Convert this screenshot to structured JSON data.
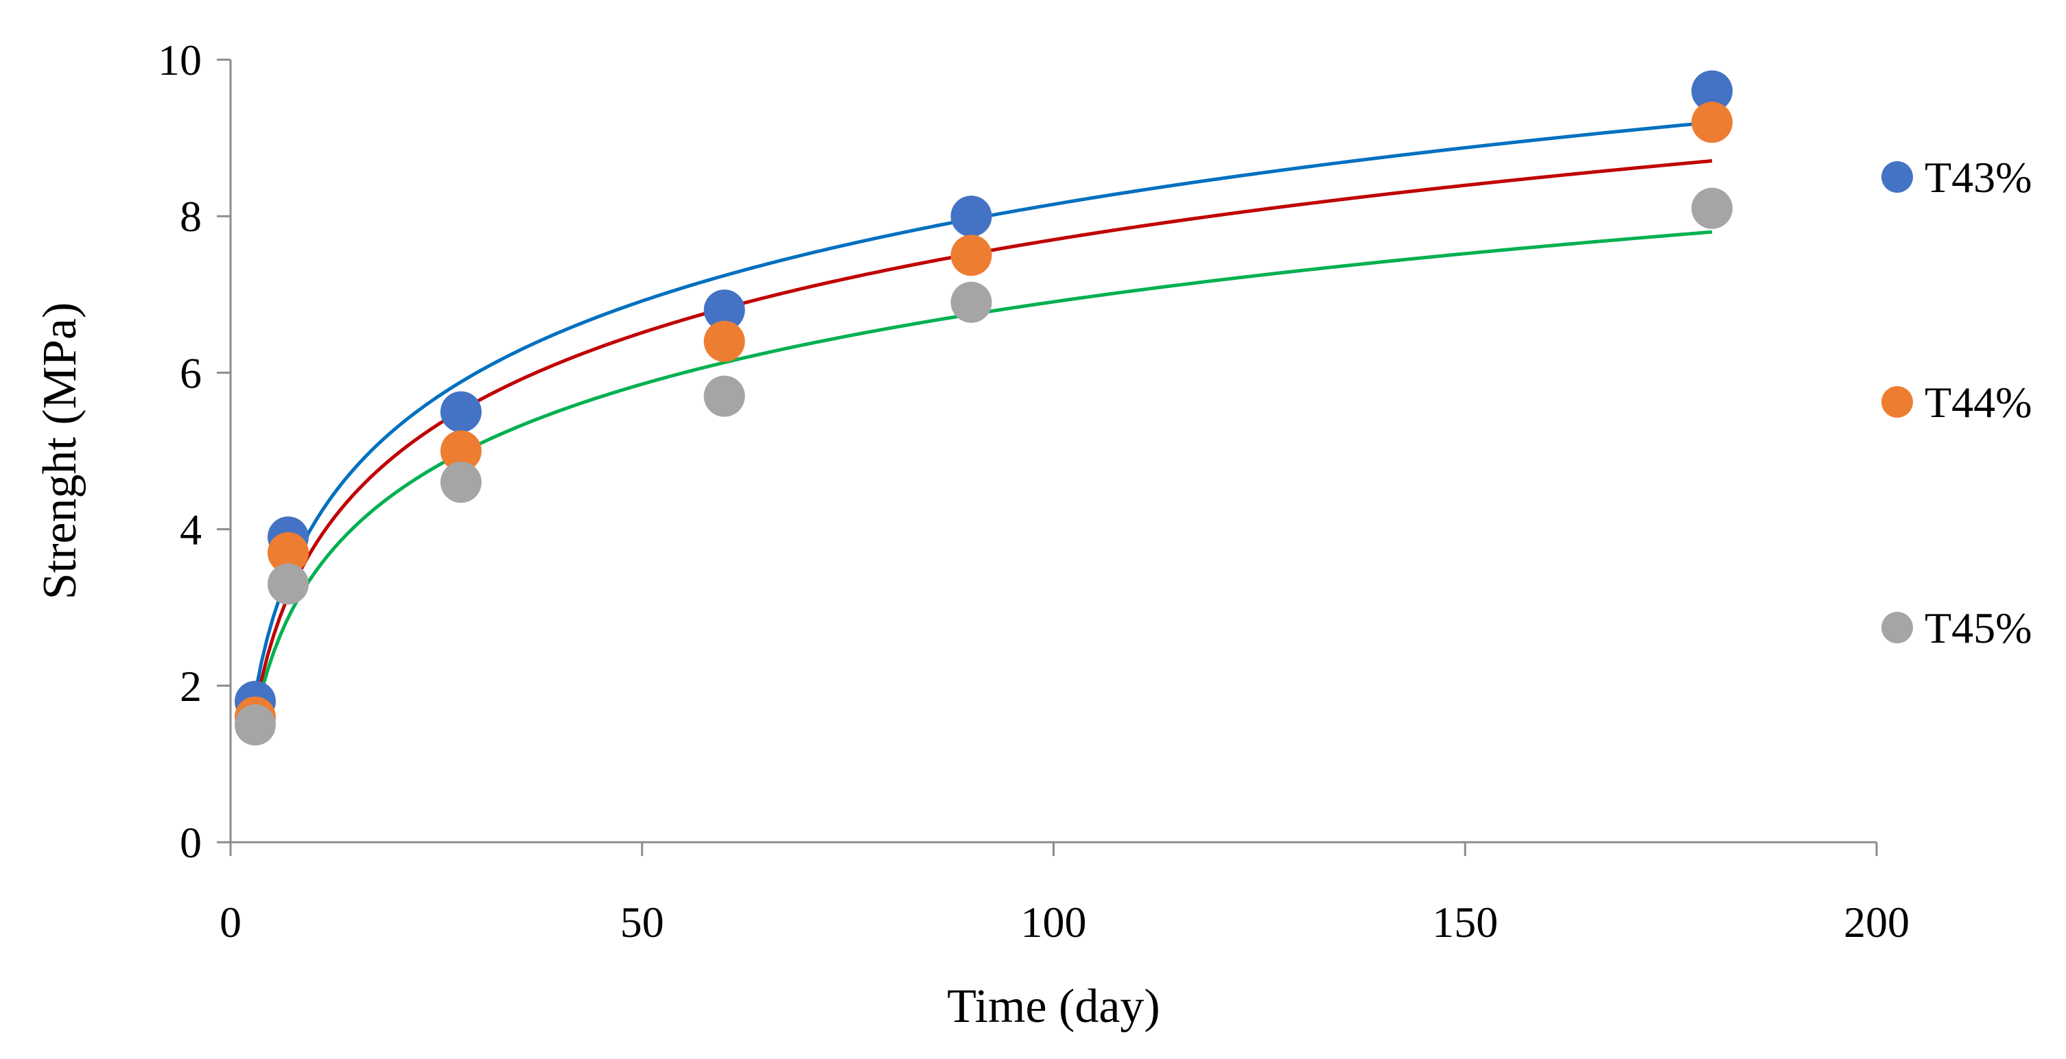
{
  "chart_data": {
    "type": "scatter",
    "title": "",
    "xlabel": "Time (day)",
    "ylabel": "Strenght (MPa)",
    "xlim": [
      0,
      200
    ],
    "ylim": [
      0,
      10
    ],
    "x_ticks": [
      0,
      50,
      100,
      150,
      200
    ],
    "y_ticks": [
      0,
      2,
      4,
      6,
      8,
      10
    ],
    "x_tick_labels": [
      "0",
      "50",
      "100",
      "150",
      "200"
    ],
    "y_tick_labels": [
      "0",
      "2",
      "4",
      "6",
      "8",
      "10"
    ],
    "grid": false,
    "legend_position": "right",
    "x": [
      3,
      7,
      28,
      60,
      90,
      180
    ],
    "series": [
      {
        "name": "T43%",
        "values": [
          1.8,
          3.9,
          5.5,
          6.8,
          8.0,
          9.6
        ],
        "color": "#4472C4",
        "trendline": {
          "type": "logarithmic",
          "color": "#0070C0",
          "x_range": [
            3,
            180
          ]
        }
      },
      {
        "name": "T44%",
        "values": [
          1.6,
          3.7,
          5.0,
          6.4,
          7.5,
          9.2
        ],
        "color": "#ED7D31",
        "trendline": {
          "type": "logarithmic",
          "color": "#C00000",
          "x_range": [
            3,
            180
          ]
        }
      },
      {
        "name": "T45%",
        "values": [
          1.5,
          3.3,
          4.6,
          5.7,
          6.9,
          8.1
        ],
        "color": "#A5A5A5",
        "trendline": {
          "type": "logarithmic",
          "color": "#00B050",
          "x_range": [
            3,
            180
          ]
        }
      }
    ]
  }
}
